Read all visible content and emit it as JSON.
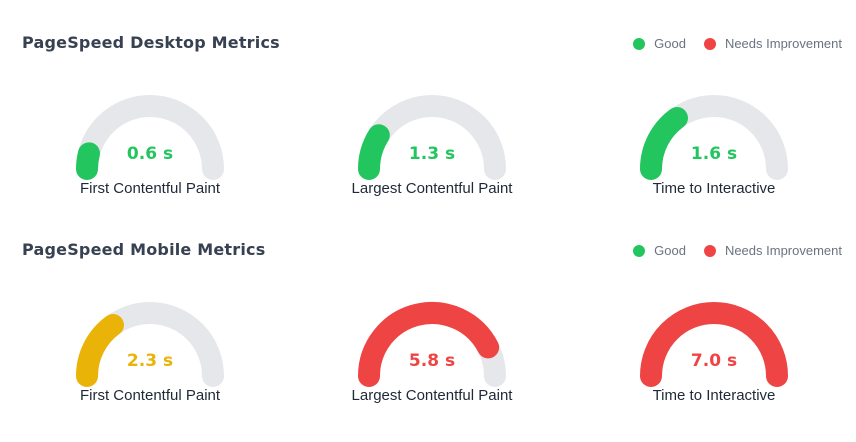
{
  "colors": {
    "good": "#22c55e",
    "warn": "#eab308",
    "bad": "#ef4444",
    "track": "#e5e7eb"
  },
  "desktop": {
    "title": "PageSpeed Desktop Metrics",
    "legend": {
      "good": "Good",
      "needs": "Needs Improvement"
    },
    "metrics": [
      {
        "value": "0.6 s",
        "label": "First Contentful Paint",
        "fraction": 0.08,
        "status": "good"
      },
      {
        "value": "1.3 s",
        "label": "Largest Contentful Paint",
        "fraction": 0.18,
        "status": "good"
      },
      {
        "value": "1.6 s",
        "label": "Time to Interactive",
        "fraction": 0.3,
        "status": "good"
      }
    ]
  },
  "mobile": {
    "title": "PageSpeed Mobile Metrics",
    "legend": {
      "good": "Good",
      "needs": "Needs Improvement"
    },
    "metrics": [
      {
        "value": "2.3 s",
        "label": "First Contentful Paint",
        "fraction": 0.3,
        "status": "warn"
      },
      {
        "value": "5.8 s",
        "label": "Largest Contentful Paint",
        "fraction": 0.85,
        "status": "bad"
      },
      {
        "value": "7.0 s",
        "label": "Time to Interactive",
        "fraction": 1.0,
        "status": "bad"
      }
    ]
  }
}
